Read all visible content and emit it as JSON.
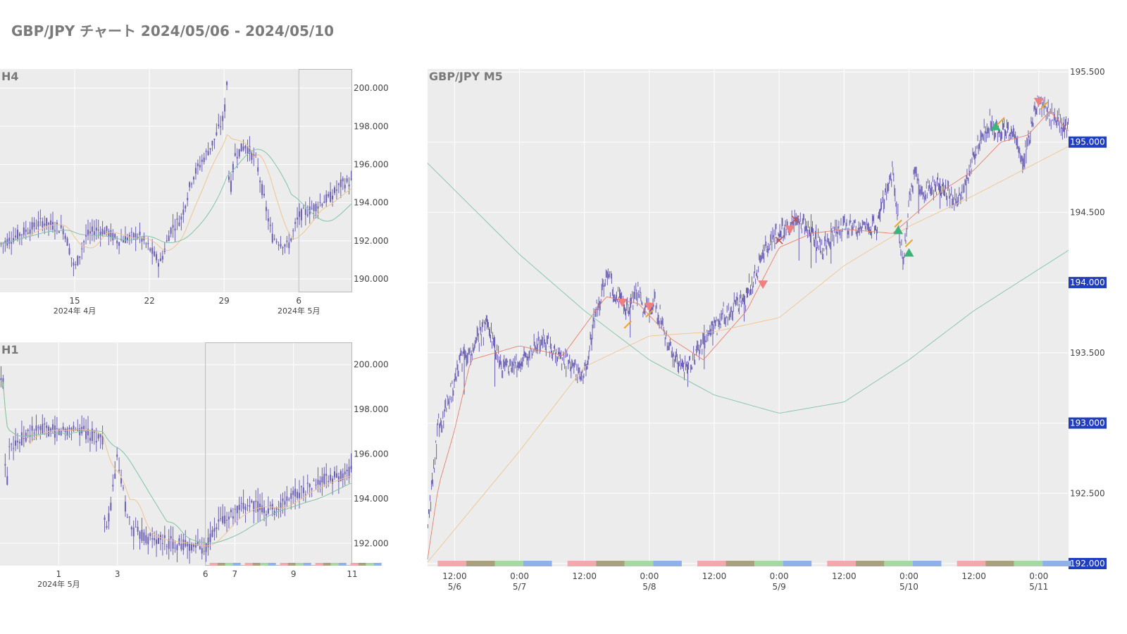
{
  "page": {
    "title": "GBP/JPY チャート 2024/05/06 - 2024/05/10"
  },
  "colors": {
    "candle": "#6a5fb5",
    "plot_bg": "#ececec",
    "grid": "#ffffff",
    "ma_fast": "#e8806a",
    "ma_mid": "#f0c48e",
    "ma_slow": "#7fc4a4",
    "price_label_bg": "#1f3fbf",
    "sell_marker": "#f08080",
    "buy_marker": "#3cb37a",
    "exit_marker": "#f0a030",
    "session_colors": [
      "#f2a9ad",
      "#a8a07e",
      "#a7d7a3",
      "#8fb0e8"
    ]
  },
  "chart_data": [
    {
      "id": "h4",
      "type": "line",
      "title": "H4",
      "x_range": [
        "2024-04-08",
        "2024-05-11"
      ],
      "x_ticks": [
        {
          "date": "2024-04-15",
          "label": "15"
        },
        {
          "date": "2024-04-22",
          "label": "22"
        },
        {
          "date": "2024-04-29",
          "label": "29"
        },
        {
          "date": "2024-05-06",
          "label": "6"
        }
      ],
      "month_labels": [
        {
          "date": "2024-04-15",
          "label": "2024年 4月"
        },
        {
          "date": "2024-05-06",
          "label": "2024年 5月"
        }
      ],
      "highlight": [
        "2024-05-06",
        "2024-05-11"
      ],
      "ylim": [
        189.3,
        201.0
      ],
      "y_ticks": [
        "190.000",
        "192.000",
        "194.000",
        "196.000",
        "198.000",
        "200.000"
      ],
      "series": [
        {
          "x": [
            "2024-04-08",
            "2024-04-10",
            "2024-04-12",
            "2024-04-14",
            "2024-04-15",
            "2024-04-16",
            "2024-04-17",
            "2024-04-18",
            "2024-04-19",
            "2024-04-21",
            "2024-04-22",
            "2024-04-23",
            "2024-04-24",
            "2024-04-25",
            "2024-04-26",
            "2024-04-28",
            "2024-04-29",
            "2024-04-29 06:00",
            "2024-04-29 12:00",
            "2024-04-30",
            "2024-05-01",
            "2024-05-02",
            "2024-05-03",
            "2024-05-03 12:00",
            "2024-05-05",
            "2024-05-06",
            "2024-05-07",
            "2024-05-08",
            "2024-05-09",
            "2024-05-10",
            "2024-05-11"
          ],
          "values": [
            191.8,
            192.4,
            193.0,
            192.6,
            190.5,
            192.2,
            192.6,
            192.5,
            192.0,
            192.3,
            191.6,
            190.8,
            192.6,
            193.2,
            195.3,
            197.2,
            198.5,
            200.4,
            194.2,
            196.5,
            197.0,
            196.2,
            193.5,
            192.2,
            191.7,
            193.3,
            193.6,
            194.0,
            194.3,
            195.0,
            195.1
          ]
        }
      ]
    },
    {
      "id": "h1",
      "type": "line",
      "title": "H1",
      "x_range": [
        "2024-04-29",
        "2024-05-11"
      ],
      "x_ticks": [
        {
          "date": "2024-05-01",
          "label": "1"
        },
        {
          "date": "2024-05-03",
          "label": "3"
        },
        {
          "date": "2024-05-06",
          "label": "6"
        },
        {
          "date": "2024-05-07",
          "label": "7"
        },
        {
          "date": "2024-05-09",
          "label": "9"
        },
        {
          "date": "2024-05-11",
          "label": "11"
        }
      ],
      "month_labels": [
        {
          "date": "2024-05-01",
          "label": "2024年 5月"
        }
      ],
      "highlight": [
        "2024-05-06",
        "2024-05-11"
      ],
      "ylim": [
        191.0,
        201.0
      ],
      "y_ticks": [
        "192.000",
        "194.000",
        "196.000",
        "198.000",
        "200.000"
      ],
      "series": [
        {
          "x": [
            "2024-04-29 00:00",
            "2024-04-29 02:00",
            "2024-04-29 05:00",
            "2024-04-29 08:00",
            "2024-04-29 12:00",
            "2024-04-30",
            "2024-04-30 12:00",
            "2024-05-01",
            "2024-05-01 12:00",
            "2024-05-02",
            "2024-05-02 12:00",
            "2024-05-02 14:00",
            "2024-05-03",
            "2024-05-03 06:00",
            "2024-05-03 12:00",
            "2024-05-04",
            "2024-05-05",
            "2024-05-06",
            "2024-05-06 12:00",
            "2024-05-07",
            "2024-05-07 12:00",
            "2024-05-08",
            "2024-05-08 12:00",
            "2024-05-09",
            "2024-05-09 12:00",
            "2024-05-10",
            "2024-05-10 12:00",
            "2024-05-11"
          ],
          "values": [
            198.5,
            200.3,
            194.0,
            196.8,
            196.4,
            197.0,
            197.1,
            197.0,
            197.2,
            196.9,
            196.7,
            192.0,
            195.8,
            193.8,
            192.6,
            192.2,
            192.0,
            191.8,
            193.0,
            193.3,
            193.8,
            193.5,
            193.6,
            194.2,
            194.5,
            194.8,
            195.0,
            195.2
          ]
        }
      ]
    },
    {
      "id": "m5",
      "type": "line",
      "title": "GBP/JPY M5",
      "x_range": [
        "2024-05-06 07:00",
        "2024-05-11 05:30"
      ],
      "x_ticks": [
        {
          "date": "2024-05-06 12:00",
          "label": "12:00",
          "sub": "5/6"
        },
        {
          "date": "2024-05-07 00:00",
          "label": "0:00",
          "sub": "5/7"
        },
        {
          "date": "2024-05-07 12:00",
          "label": "12:00",
          "sub": ""
        },
        {
          "date": "2024-05-08 00:00",
          "label": "0:00",
          "sub": "5/8"
        },
        {
          "date": "2024-05-08 12:00",
          "label": "12:00",
          "sub": ""
        },
        {
          "date": "2024-05-09 00:00",
          "label": "0:00",
          "sub": "5/9"
        },
        {
          "date": "2024-05-09 12:00",
          "label": "12:00",
          "sub": ""
        },
        {
          "date": "2024-05-10 00:00",
          "label": "0:00",
          "sub": "5/10"
        },
        {
          "date": "2024-05-10 12:00",
          "label": "12:00",
          "sub": ""
        },
        {
          "date": "2024-05-11 00:00",
          "label": "0:00",
          "sub": "5/11"
        }
      ],
      "ylim": [
        191.98,
        195.52
      ],
      "y_ticks": [
        "192.000",
        "192.500",
        "193.000",
        "193.500",
        "194.000",
        "194.500",
        "195.000",
        "195.500"
      ],
      "y_tick_values": [
        192.0,
        192.5,
        193.0,
        193.5,
        194.0,
        194.5,
        195.0,
        195.5
      ],
      "price_labels": [
        "192.000",
        "193.000",
        "194.000",
        "195.000"
      ],
      "series": [
        {
          "name": "",
          "x": [
            "2024-05-06 07:00",
            "2024-05-06 08:00",
            "2024-05-06 09:00",
            "2024-05-06 10:00",
            "2024-05-06 12:00",
            "2024-05-06 13:00",
            "2024-05-06 15:00",
            "2024-05-06 18:00",
            "2024-05-06 21:00",
            "2024-05-07 00:00",
            "2024-05-07 04:00",
            "2024-05-07 08:00",
            "2024-05-07 12:00",
            "2024-05-07 14:00",
            "2024-05-07 16:00",
            "2024-05-07 19:00",
            "2024-05-07 20:00",
            "2024-05-07 22:00",
            "2024-05-07 23:00",
            "2024-05-08 01:00",
            "2024-05-08 04:00",
            "2024-05-08 06:00",
            "2024-05-08 08:00",
            "2024-05-08 12:00",
            "2024-05-08 15:00",
            "2024-05-08 18:00",
            "2024-05-08 20:00",
            "2024-05-08 22:00",
            "2024-05-09 00:00",
            "2024-05-09 03:00",
            "2024-05-09 05:00",
            "2024-05-09 08:00",
            "2024-05-09 10:00",
            "2024-05-09 12:00",
            "2024-05-09 18:00",
            "2024-05-09 21:00",
            "2024-05-09 23:00",
            "2024-05-10 00:00",
            "2024-05-10 01:00",
            "2024-05-10 03:00",
            "2024-05-10 06:00",
            "2024-05-10 09:00",
            "2024-05-10 12:00",
            "2024-05-10 15:00",
            "2024-05-10 17:00",
            "2024-05-10 19:00",
            "2024-05-10 21:00",
            "2024-05-11 00:00",
            "2024-05-11 02:00",
            "2024-05-11 05:00"
          ],
          "values": [
            192.25,
            192.62,
            193.0,
            193.05,
            193.3,
            193.45,
            193.5,
            193.7,
            193.4,
            193.42,
            193.6,
            193.45,
            193.35,
            193.75,
            194.05,
            193.85,
            193.8,
            193.95,
            193.8,
            193.85,
            193.5,
            193.4,
            193.45,
            193.7,
            193.8,
            193.9,
            194.1,
            194.3,
            194.35,
            194.45,
            194.4,
            194.25,
            194.35,
            194.4,
            194.4,
            194.8,
            194.1,
            194.6,
            194.75,
            194.65,
            194.7,
            194.55,
            194.9,
            195.15,
            195.05,
            195.1,
            194.85,
            195.3,
            195.2,
            195.1
          ]
        }
      ],
      "moving_averages": [
        {
          "name": "",
          "x": [
            "2024-05-06 07:00",
            "2024-05-06 09:00",
            "2024-05-06 12:00",
            "2024-05-06 15:00",
            "2024-05-07 00:00",
            "2024-05-07 08:00",
            "2024-05-07 16:00",
            "2024-05-07 22:00",
            "2024-05-08 04:00",
            "2024-05-08 10:00",
            "2024-05-08 18:00",
            "2024-05-09 00:00",
            "2024-05-09 06:00",
            "2024-05-09 12:00",
            "2024-05-09 21:00",
            "2024-05-10 00:00",
            "2024-05-10 06:00",
            "2024-05-10 12:00",
            "2024-05-10 17:00",
            "2024-05-10 22:00",
            "2024-05-11 02:00",
            "2024-05-11 05:30"
          ],
          "values": [
            192.03,
            192.55,
            192.95,
            193.45,
            193.55,
            193.48,
            193.9,
            193.85,
            193.6,
            193.45,
            193.8,
            194.25,
            194.35,
            194.38,
            194.35,
            194.45,
            194.65,
            194.8,
            195.0,
            195.05,
            195.22,
            195.08
          ]
        },
        {
          "name": "",
          "x": [
            "2024-05-06 07:00",
            "2024-05-07 00:00",
            "2024-05-07 12:00",
            "2024-05-08 00:00",
            "2024-05-08 12:00",
            "2024-05-09 00:00",
            "2024-05-09 12:00",
            "2024-05-10 00:00",
            "2024-05-10 12:00",
            "2024-05-11 05:30"
          ],
          "values": [
            192.01,
            192.8,
            193.4,
            193.62,
            193.65,
            193.75,
            194.12,
            194.4,
            194.62,
            194.97
          ]
        },
        {
          "name": "",
          "x": [
            "2024-05-06 07:00",
            "2024-05-07 00:00",
            "2024-05-07 12:00",
            "2024-05-08 00:00",
            "2024-05-08 12:00",
            "2024-05-09 00:00",
            "2024-05-09 12:00",
            "2024-05-10 00:00",
            "2024-05-10 12:00",
            "2024-05-11 05:30"
          ],
          "values": [
            194.85,
            194.2,
            193.8,
            193.45,
            193.2,
            193.07,
            193.15,
            193.45,
            193.8,
            194.23
          ]
        }
      ],
      "markers": [
        {
          "x": "2024-05-07 19:00",
          "y": 193.85,
          "kind": "sell"
        },
        {
          "x": "2024-05-07 20:00",
          "y": 193.7,
          "kind": "exit"
        },
        {
          "x": "2024-05-08 00:00",
          "y": 193.82,
          "kind": "sell"
        },
        {
          "x": "2024-05-08 00:00",
          "y": 193.78,
          "kind": "exit"
        },
        {
          "x": "2024-05-08 21:00",
          "y": 193.98,
          "kind": "sell"
        },
        {
          "x": "2024-05-09 00:00",
          "y": 194.3,
          "kind": "close"
        },
        {
          "x": "2024-05-09 02:00",
          "y": 194.37,
          "kind": "sell"
        },
        {
          "x": "2024-05-09 03:00",
          "y": 194.45,
          "kind": "close"
        },
        {
          "x": "2024-05-09 22:00",
          "y": 194.42,
          "kind": "exit"
        },
        {
          "x": "2024-05-09 22:00",
          "y": 194.38,
          "kind": "buy"
        },
        {
          "x": "2024-05-10 00:00",
          "y": 194.28,
          "kind": "exit"
        },
        {
          "x": "2024-05-10 00:00",
          "y": 194.22,
          "kind": "buy"
        },
        {
          "x": "2024-05-10 17:00",
          "y": 195.15,
          "kind": "exit"
        },
        {
          "x": "2024-05-10 16:00",
          "y": 195.12,
          "kind": "buy"
        },
        {
          "x": "2024-05-11 00:00",
          "y": 195.28,
          "kind": "sell"
        },
        {
          "x": "2024-05-11 01:00",
          "y": 195.26,
          "kind": "exit"
        }
      ],
      "sessions": [
        {
          "start": "2024-05-06 12:00",
          "end": "2024-05-07 00:00"
        },
        {
          "start": "2024-05-07 12:00",
          "end": "2024-05-08 00:00"
        },
        {
          "start": "2024-05-08 12:00",
          "end": "2024-05-09 00:00"
        },
        {
          "start": "2024-05-09 12:00",
          "end": "2024-05-10 00:00"
        },
        {
          "start": "2024-05-10 12:00",
          "end": "2024-05-11 00:00"
        }
      ]
    }
  ]
}
